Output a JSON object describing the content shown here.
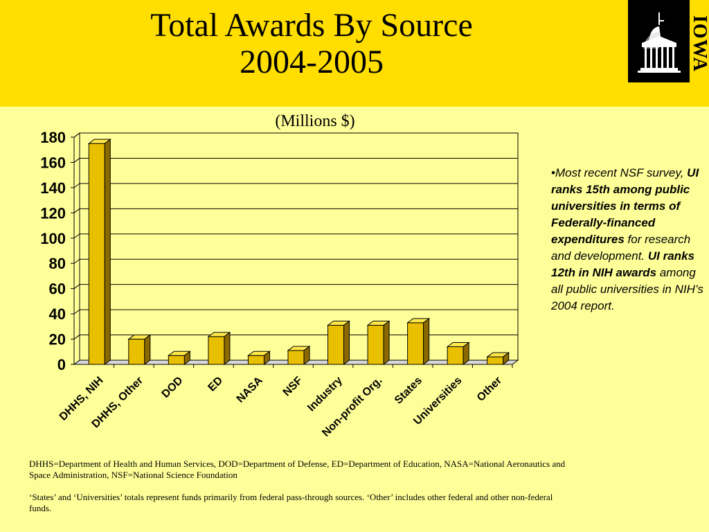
{
  "slide": {
    "title_line1": "Total Awards By Source",
    "title_line2": "2004-2005",
    "logo_text": "IOWA",
    "note": {
      "bullet": "•",
      "part1": "Most recent NSF survey, ",
      "part2_bold": "UI  ranks 15th among public universities in terms of Federally-financed expenditures",
      "part3": " for research and development.  ",
      "part4_bold": "UI ranks 12th in NIH awards",
      "part5": " among all public universities in NIH’s 2004 report."
    },
    "footnote_line1": "DHHS=Department of Health and Human Services, DOD=Department of Defense, ED=Department of Education, NASA=National Aeronautics and Space Administration, NSF=National Science Foundation",
    "footnote_line2": "‘States’ and ‘Universities’ totals represent funds primarily from federal pass-through sources.  ‘Other’ includes other federal and other non-federal funds."
  },
  "colors": {
    "header_bg": "#FFDE00",
    "page_bg": "#FFFF99",
    "bar_front": "#E8C000",
    "bar_top": "#FFE84A",
    "bar_side": "#8A6A00"
  },
  "chart_data": {
    "type": "bar",
    "title": "(Millions $)",
    "categories": [
      "DHHS, NIH",
      "DHHS, Other",
      "DOD",
      "ED",
      "NASA",
      "NSF",
      "Industry",
      "Non-profit Org.",
      "States",
      "Universities",
      "Other"
    ],
    "values": [
      175,
      20,
      7,
      22,
      7,
      11,
      31,
      31,
      33,
      14,
      6
    ],
    "ylim": [
      0,
      180
    ],
    "yticks": [
      0,
      20,
      40,
      60,
      80,
      100,
      120,
      140,
      160,
      180
    ],
    "grid": true,
    "legend": "none"
  }
}
